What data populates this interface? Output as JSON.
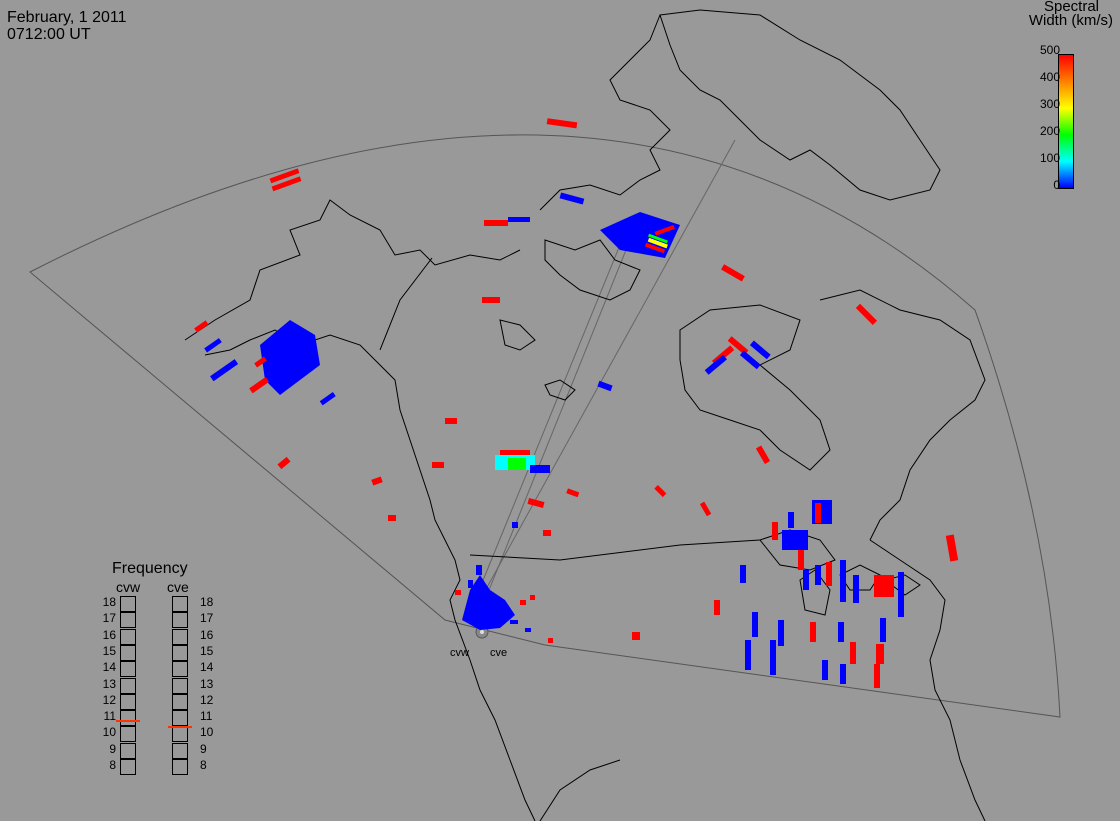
{
  "header": {
    "date": "February, 1 2011",
    "time": "0712:00 UT"
  },
  "colorbar": {
    "title_line1": "Spectral",
    "title_line2": "Width (km/s)",
    "ticks": [
      "500",
      "400",
      "300",
      "200",
      "100",
      "0"
    ],
    "gradient_colors": [
      "#ff0000",
      "#ff8000",
      "#ffff00",
      "#00ff00",
      "#00ffff",
      "#0000ff"
    ]
  },
  "frequency_panel": {
    "title": "Frequency",
    "left_label": "cvw",
    "right_label": "cve",
    "scale": [
      "18",
      "17",
      "16",
      "15",
      "14",
      "13",
      "12",
      "11",
      "10",
      "9",
      "8"
    ],
    "cvw_mhz": 10.9,
    "cve_mhz": 10.5,
    "marker_color": "#ff3300"
  },
  "radars": {
    "west": "cvw",
    "east": "cve"
  },
  "colors": {
    "background": "#999999",
    "low_width": "#0000ff",
    "high_width": "#ff0000"
  }
}
